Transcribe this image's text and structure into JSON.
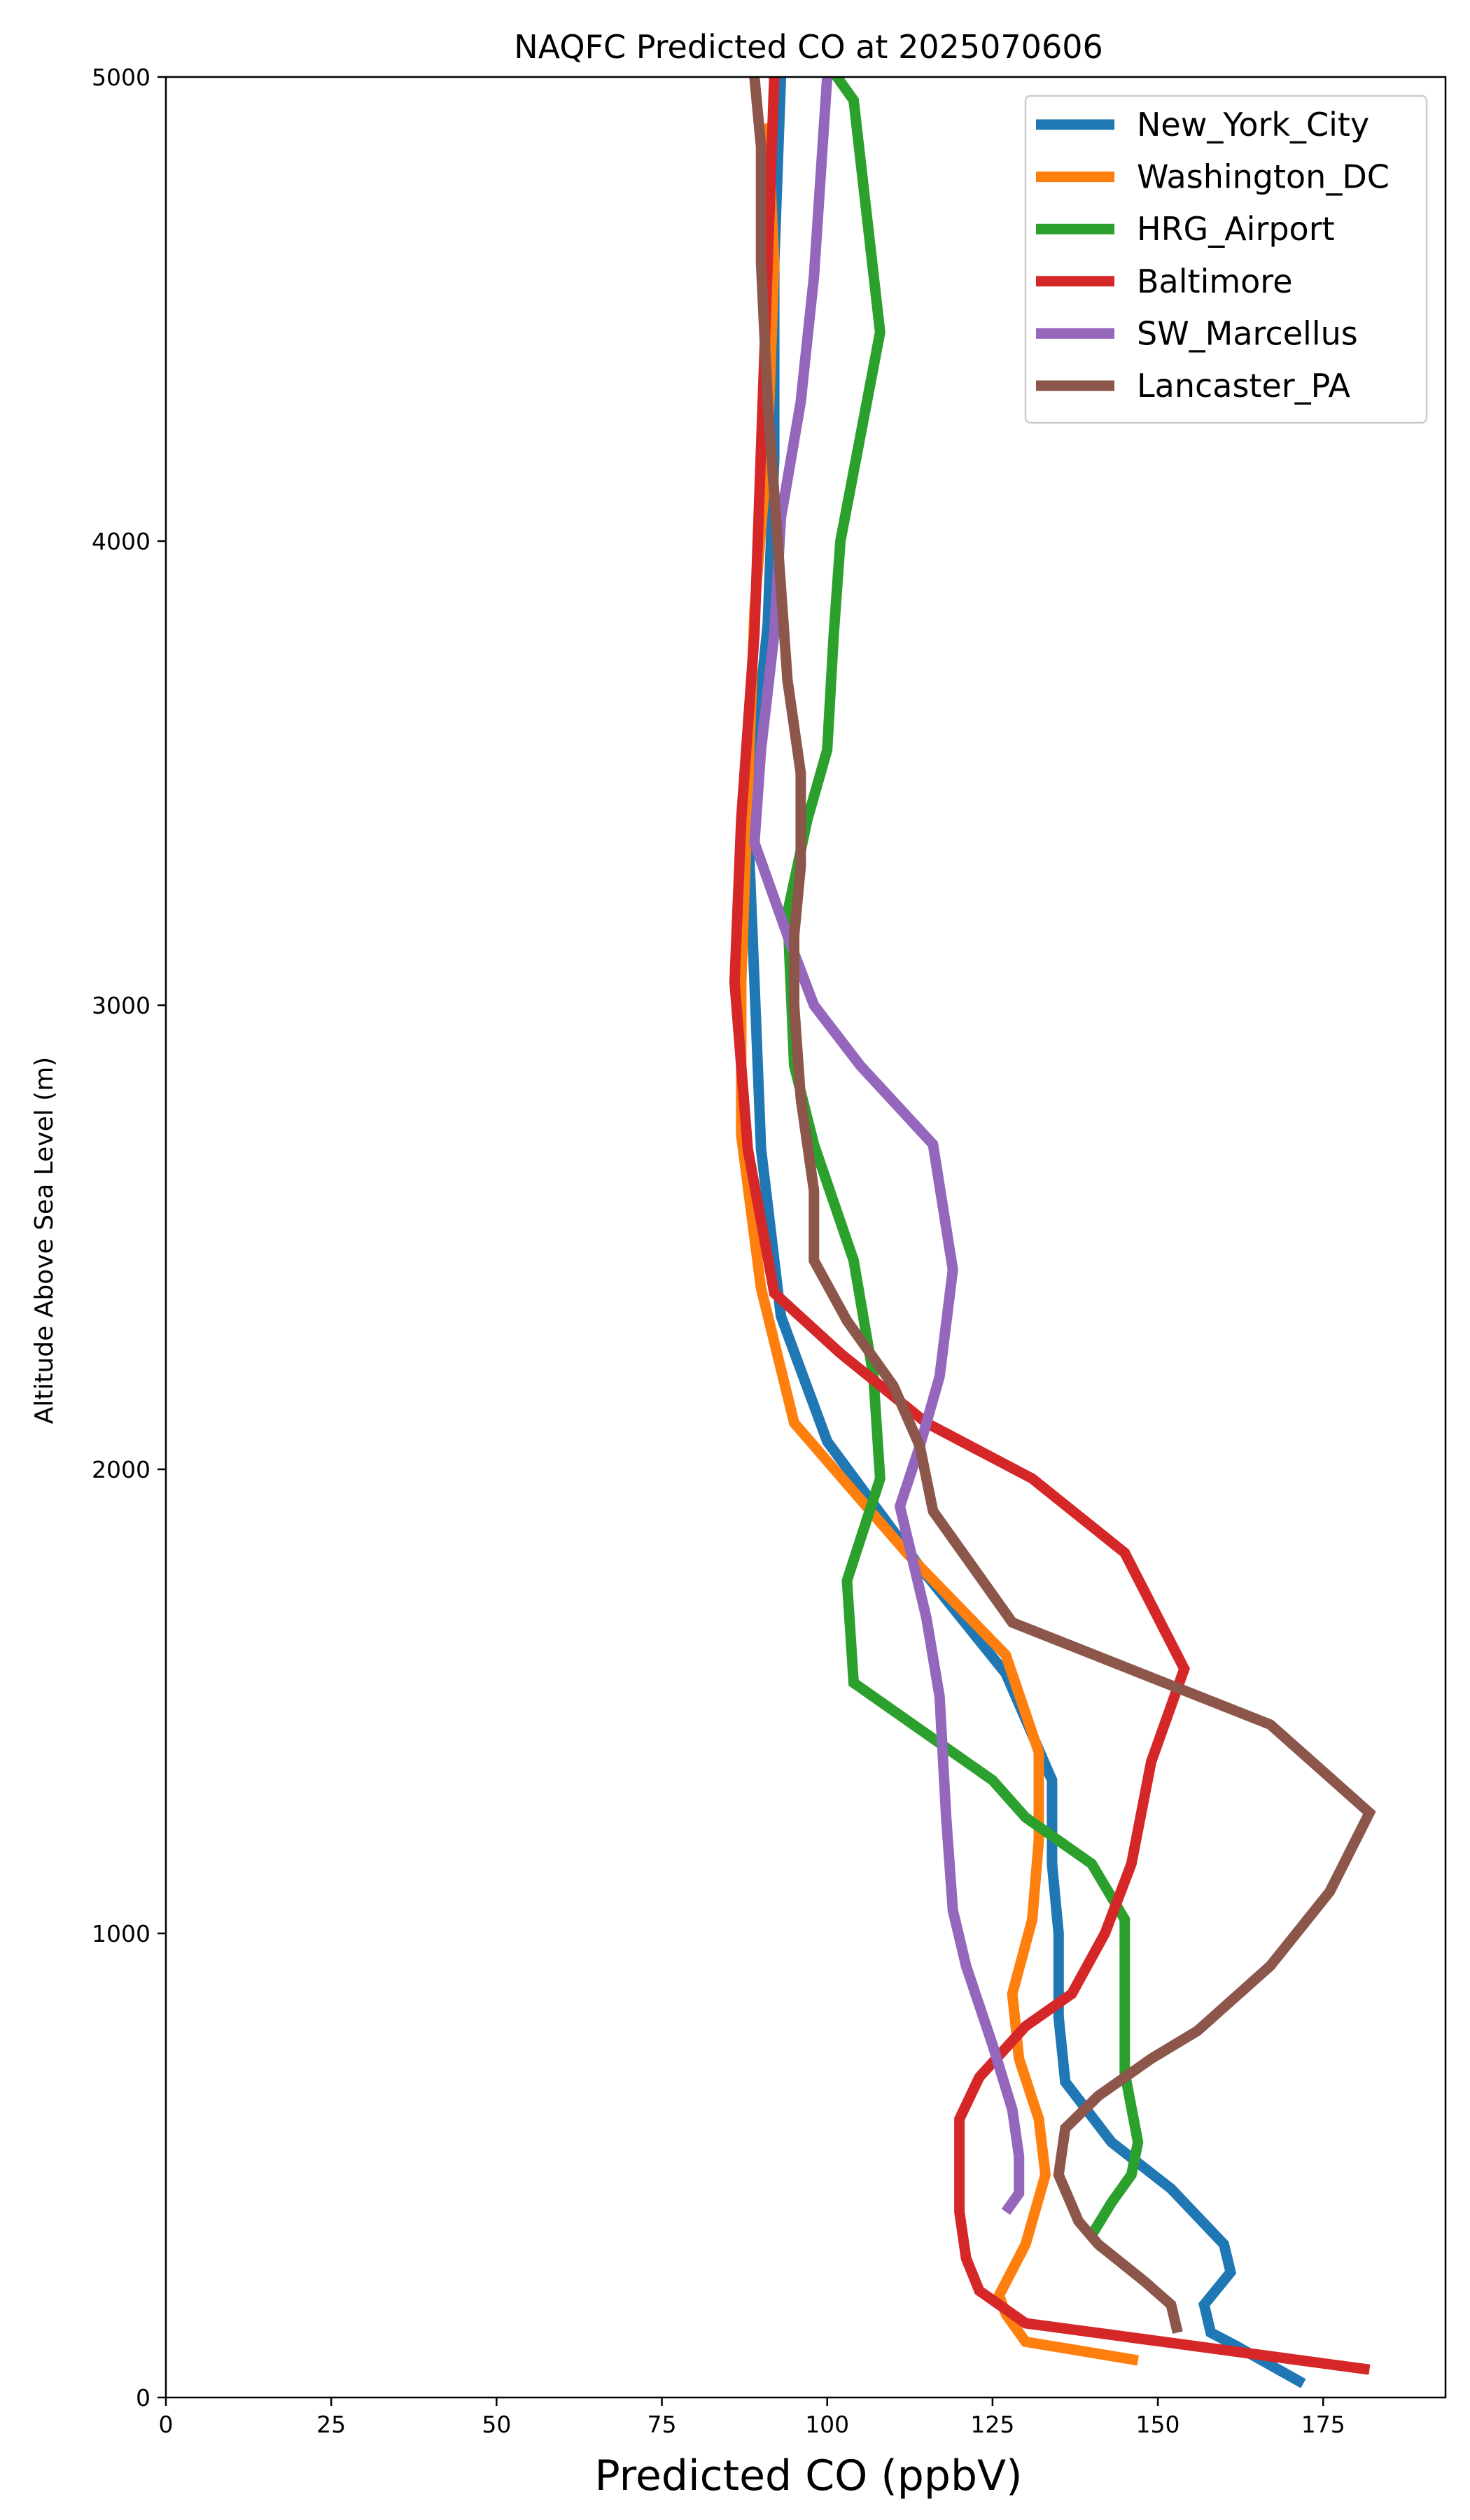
{
  "chart_data": {
    "type": "line",
    "title": "NAQFC Predicted CO at 2025070606",
    "xlabel": "Predicted CO (ppbV)",
    "ylabel": "Altitude Above Sea Level (m)",
    "xlim": [
      0,
      193.5
    ],
    "ylim": [
      0,
      5000
    ],
    "xticks": [
      0,
      25,
      50,
      75,
      100,
      125,
      150,
      175
    ],
    "yticks": [
      0,
      1000,
      2000,
      3000,
      4000,
      5000
    ],
    "grid": false,
    "legend_position": "top-right",
    "series": [
      {
        "name": "New_York_City",
        "color": "#1f77b4",
        "points": [
          [
            172,
            30
          ],
          [
            162,
            110
          ],
          [
            158,
            140
          ],
          [
            157,
            200
          ],
          [
            161,
            270
          ],
          [
            160,
            330
          ],
          [
            152,
            450
          ],
          [
            143,
            550
          ],
          [
            136,
            680
          ],
          [
            135,
            820
          ],
          [
            135,
            1000
          ],
          [
            134,
            1150
          ],
          [
            134,
            1330
          ],
          [
            127,
            1560
          ],
          [
            114,
            1790
          ],
          [
            100,
            2060
          ],
          [
            93,
            2330
          ],
          [
            90,
            2690
          ],
          [
            89,
            3050
          ],
          [
            88,
            3400
          ],
          [
            91,
            3820
          ],
          [
            92,
            4180
          ],
          [
            92,
            4600
          ],
          [
            93,
            5000
          ]
        ]
      },
      {
        "name": "Washington_DC",
        "color": "#ff7f0e",
        "points": [
          [
            147,
            80
          ],
          [
            130,
            120
          ],
          [
            127,
            180
          ],
          [
            126,
            220
          ],
          [
            130,
            330
          ],
          [
            133,
            480
          ],
          [
            132,
            600
          ],
          [
            129,
            730
          ],
          [
            128,
            870
          ],
          [
            131,
            1030
          ],
          [
            132,
            1200
          ],
          [
            132,
            1390
          ],
          [
            127,
            1600
          ],
          [
            112,
            1820
          ],
          [
            95,
            2100
          ],
          [
            90,
            2390
          ],
          [
            87,
            2720
          ],
          [
            87,
            3050
          ],
          [
            88,
            3450
          ],
          [
            89,
            3850
          ],
          [
            91,
            4200
          ],
          [
            92,
            4600
          ],
          [
            91,
            4900
          ]
        ]
      },
      {
        "name": "HRG_Airport",
        "color": "#2ca02c",
        "points": [
          [
            140,
            350
          ],
          [
            143,
            420
          ],
          [
            146,
            480
          ],
          [
            147,
            550
          ],
          [
            145,
            700
          ],
          [
            145,
            870
          ],
          [
            145,
            1030
          ],
          [
            140,
            1150
          ],
          [
            130,
            1250
          ],
          [
            125,
            1330
          ],
          [
            113,
            1450
          ],
          [
            104,
            1540
          ],
          [
            103,
            1760
          ],
          [
            108,
            1980
          ],
          [
            107,
            2200
          ],
          [
            104,
            2450
          ],
          [
            98,
            2700
          ],
          [
            95,
            2870
          ],
          [
            94,
            3200
          ],
          [
            97,
            3400
          ],
          [
            100,
            3550
          ],
          [
            101,
            3800
          ],
          [
            102,
            4000
          ],
          [
            108,
            4450
          ],
          [
            104,
            4950
          ],
          [
            101,
            5010
          ]
        ]
      },
      {
        "name": "Baltimore",
        "color": "#d62728",
        "points": [
          [
            182,
            60
          ],
          [
            130,
            160
          ],
          [
            123,
            230
          ],
          [
            121,
            300
          ],
          [
            120,
            400
          ],
          [
            120,
            500
          ],
          [
            120,
            600
          ],
          [
            123,
            690
          ],
          [
            130,
            800
          ],
          [
            137,
            870
          ],
          [
            142,
            1000
          ],
          [
            146,
            1150
          ],
          [
            149,
            1370
          ],
          [
            154,
            1570
          ],
          [
            145,
            1820
          ],
          [
            131,
            1980
          ],
          [
            115,
            2100
          ],
          [
            102,
            2250
          ],
          [
            92,
            2380
          ],
          [
            88,
            2690
          ],
          [
            86,
            3050
          ],
          [
            87,
            3400
          ],
          [
            89,
            3800
          ],
          [
            90,
            4200
          ],
          [
            91,
            4600
          ],
          [
            92,
            5000
          ]
        ]
      },
      {
        "name": "SW_Marcellus",
        "color": "#9467bd",
        "points": [
          [
            127,
            400
          ],
          [
            129,
            440
          ],
          [
            129,
            520
          ],
          [
            128,
            620
          ],
          [
            125,
            760
          ],
          [
            121,
            930
          ],
          [
            119,
            1050
          ],
          [
            118,
            1250
          ],
          [
            117,
            1510
          ],
          [
            115,
            1680
          ],
          [
            113,
            1800
          ],
          [
            111,
            1920
          ],
          [
            114,
            2050
          ],
          [
            117,
            2200
          ],
          [
            119,
            2430
          ],
          [
            116,
            2700
          ],
          [
            105,
            2870
          ],
          [
            98,
            3000
          ],
          [
            94,
            3150
          ],
          [
            89,
            3350
          ],
          [
            90,
            3550
          ],
          [
            92,
            3800
          ],
          [
            93,
            4050
          ],
          [
            96,
            4300
          ],
          [
            98,
            4570
          ],
          [
            100,
            5000
          ],
          [
            100,
            5010
          ]
        ]
      },
      {
        "name": "Lancaster_PA",
        "color": "#8c564b",
        "points": [
          [
            153,
            140
          ],
          [
            152,
            200
          ],
          [
            148,
            250
          ],
          [
            141,
            330
          ],
          [
            138,
            380
          ],
          [
            135,
            480
          ],
          [
            136,
            580
          ],
          [
            141,
            650
          ],
          [
            149,
            730
          ],
          [
            156,
            790
          ],
          [
            167,
            930
          ],
          [
            176,
            1090
          ],
          [
            182,
            1260
          ],
          [
            167,
            1450
          ],
          [
            128,
            1670
          ],
          [
            116,
            1910
          ],
          [
            114,
            2050
          ],
          [
            110,
            2180
          ],
          [
            103,
            2320
          ],
          [
            98,
            2450
          ],
          [
            98,
            2600
          ],
          [
            96,
            2800
          ],
          [
            95,
            3000
          ],
          [
            95,
            3150
          ],
          [
            96,
            3300
          ],
          [
            96,
            3500
          ],
          [
            94,
            3700
          ],
          [
            93,
            3900
          ],
          [
            92,
            4100
          ],
          [
            91,
            4300
          ],
          [
            90,
            4600
          ],
          [
            90,
            4850
          ],
          [
            89,
            5000
          ]
        ]
      }
    ]
  }
}
